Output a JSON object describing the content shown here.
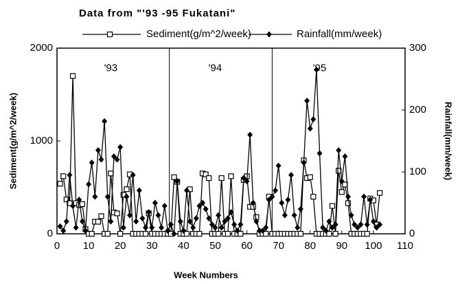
{
  "chart_data": {
    "type": "line",
    "title": "Data from \"'93 -95 Fukatani\"",
    "xlabel": "Week Numbers",
    "ylabel": "Sediment(g/m^2/week)",
    "y2label": "Rainfall(mm/week)",
    "x": [
      1,
      2,
      3,
      4,
      5,
      6,
      7,
      8,
      9,
      10,
      11,
      12,
      13,
      14,
      15,
      16,
      17,
      18,
      19,
      20,
      21,
      22,
      23,
      24,
      25,
      26,
      27,
      28,
      29,
      30,
      31,
      32,
      33,
      34,
      35,
      36,
      37,
      38,
      39,
      40,
      41,
      42,
      43,
      44,
      45,
      46,
      47,
      48,
      49,
      50,
      51,
      52,
      53,
      54,
      55,
      56,
      57,
      58,
      59,
      60,
      61,
      62,
      63,
      64,
      65,
      66,
      67,
      68,
      69,
      70,
      71,
      72,
      73,
      74,
      75,
      76,
      77,
      78,
      79,
      80,
      81,
      82,
      83,
      84,
      85,
      86,
      87,
      88,
      89,
      90,
      91,
      92,
      93,
      94,
      95,
      96,
      97,
      98,
      99,
      100,
      101,
      102
    ],
    "series": [
      {
        "name": "Sediment(g/m^2/week)",
        "color": "#000000",
        "marker": "square",
        "axis": "y",
        "values": [
          540,
          620,
          370,
          330,
          1700,
          330,
          310,
          320,
          50,
          0,
          0,
          130,
          130,
          190,
          0,
          0,
          650,
          230,
          220,
          0,
          420,
          480,
          640,
          0,
          0,
          0,
          0,
          0,
          220,
          0,
          0,
          0,
          0,
          0,
          0,
          0,
          610,
          560,
          0,
          0,
          0,
          480,
          0,
          0,
          0,
          650,
          640,
          600,
          0,
          0,
          0,
          600,
          0,
          0,
          620,
          0,
          0,
          0,
          580,
          620,
          290,
          290,
          180,
          0,
          0,
          0,
          400,
          0,
          0,
          0,
          0,
          0,
          0,
          0,
          0,
          0,
          0,
          790,
          600,
          610,
          400,
          0,
          0,
          0,
          0,
          0,
          300,
          0,
          680,
          450,
          530,
          330,
          0,
          0,
          0,
          0,
          0,
          0,
          380,
          360,
          100,
          440
        ]
      },
      {
        "name": "Rainfall(mm/week)",
        "color": "#000000",
        "marker": "diamond",
        "axis": "y2",
        "values": [
          12,
          5,
          20,
          95,
          45,
          10,
          55,
          20,
          5,
          80,
          115,
          60,
          135,
          120,
          182,
          60,
          20,
          125,
          120,
          140,
          10,
          60,
          30,
          95,
          20,
          70,
          25,
          10,
          35,
          10,
          50,
          30,
          10,
          45,
          5,
          15,
          0,
          85,
          20,
          5,
          70,
          20,
          10,
          25,
          45,
          50,
          40,
          25,
          15,
          10,
          30,
          10,
          20,
          25,
          35,
          15,
          5,
          15,
          90,
          85,
          160,
          50,
          20,
          5,
          5,
          10,
          55,
          60,
          70,
          110,
          50,
          30,
          55,
          95,
          30,
          10,
          40,
          115,
          215,
          170,
          185,
          265,
          130,
          10,
          5,
          20,
          10,
          15,
          135,
          85,
          125,
          60,
          30,
          15,
          10,
          15,
          60,
          15,
          55,
          20,
          10,
          15
        ]
      }
    ],
    "xlim": [
      0,
      110
    ],
    "xticks": [
      0,
      10,
      20,
      30,
      40,
      50,
      60,
      70,
      80,
      90,
      100,
      110
    ],
    "ylim": [
      0,
      2000
    ],
    "yticks": [
      0,
      1000,
      2000
    ],
    "y2lim": [
      0,
      300
    ],
    "y2ticks": [
      0,
      100,
      200,
      300
    ],
    "vlines": [
      35.5,
      68
    ],
    "annotations": [
      {
        "text": "'93",
        "x": 17,
        "y": 1780
      },
      {
        "text": "'94",
        "x": 50,
        "y": 1780
      },
      {
        "text": "'95",
        "x": 83,
        "y": 1780
      }
    ],
    "grid": false
  }
}
